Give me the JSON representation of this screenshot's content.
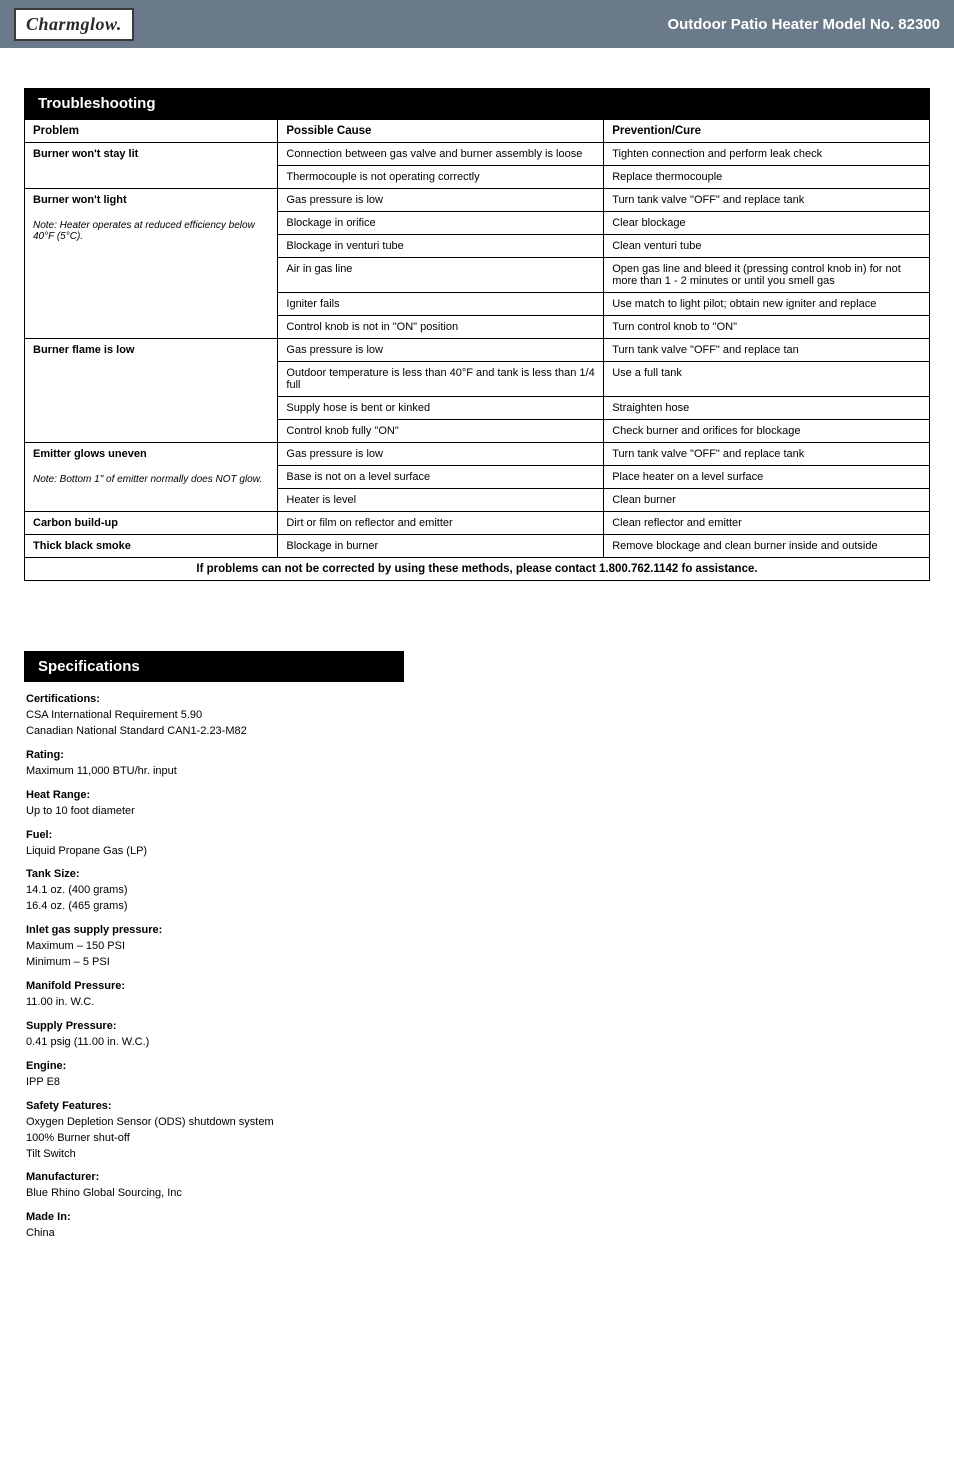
{
  "header": {
    "logo_text": "Charmglow.",
    "right_text": "Outdoor Patio Heater Model No. 82300"
  },
  "troubleshooting": {
    "title": "Troubleshooting",
    "columns": [
      "Problem",
      "Possible Cause",
      "Prevention/Cure"
    ],
    "groups": [
      {
        "problem": "Burner won't stay lit",
        "note": "",
        "rows": [
          {
            "cause": "Connection between gas valve and burner assembly is loose",
            "cure": "Tighten connection and perform leak check"
          },
          {
            "cause": "Thermocouple is not operating correctly",
            "cure": "Replace thermocouple"
          }
        ]
      },
      {
        "problem": "Burner won't light",
        "note": "Note: Heater operates at reduced efficiency below 40°F (5°C).",
        "rows": [
          {
            "cause": "Gas pressure is low",
            "cure": "Turn tank valve \"OFF\" and replace tank"
          },
          {
            "cause": "Blockage in orifice",
            "cure": "Clear blockage"
          },
          {
            "cause": "Blockage in venturi tube",
            "cure": "Clean venturi tube"
          },
          {
            "cause": "Air in gas line",
            "cure": "Open gas line and bleed it (pressing control knob in) for not more than 1 - 2 minutes or until you smell gas"
          },
          {
            "cause": "Igniter fails",
            "cure": "Use match to light pilot; obtain new igniter and replace"
          },
          {
            "cause": "Control knob is not in \"ON\" position",
            "cure": "Turn control knob to \"ON\""
          }
        ]
      },
      {
        "problem": "Burner flame is low",
        "note": "",
        "rows": [
          {
            "cause": "Gas pressure is low",
            "cure": "Turn tank valve \"OFF\" and replace tan"
          },
          {
            "cause": "Outdoor temperature is less than 40°F and tank is less than 1/4 full",
            "cure": "Use a full tank"
          },
          {
            "cause": "Supply hose is bent or kinked",
            "cure": "Straighten hose"
          },
          {
            "cause": "Control knob fully \"ON\"",
            "cure": "Check burner and orifices for blockage"
          }
        ]
      },
      {
        "problem": "Emitter glows uneven",
        "note": "Note: Bottom 1\" of emitter normally does NOT glow.",
        "rows": [
          {
            "cause": "Gas pressure is low",
            "cure": "Turn tank valve \"OFF\" and replace tank"
          },
          {
            "cause": "Base is not on a level surface",
            "cure": "Place heater on a level surface"
          },
          {
            "cause": "Heater is level",
            "cure": "Clean burner"
          }
        ]
      },
      {
        "problem": "Carbon build-up",
        "note": "",
        "rows": [
          {
            "cause": "Dirt or film on reflector and emitter",
            "cure": "Clean reflector and emitter"
          }
        ]
      },
      {
        "problem": "Thick black smoke",
        "note": "",
        "rows": [
          {
            "cause": "Blockage in burner",
            "cure": "Remove blockage and clean burner inside and outside"
          }
        ]
      }
    ],
    "footer": "If problems can not be corrected by using these methods, please contact 1.800.762.1142 fo assistance."
  },
  "specifications": {
    "title": "Specifications",
    "items": [
      {
        "label": "Certifications:",
        "lines": [
          "CSA International Requirement 5.90",
          "Canadian National Standard CAN1-2.23-M82"
        ]
      },
      {
        "label": "Rating:",
        "lines": [
          "Maximum 11,000 BTU/hr. input"
        ]
      },
      {
        "label": "Heat Range:",
        "lines": [
          "Up to 10 foot diameter"
        ]
      },
      {
        "label": "Fuel:",
        "lines": [
          "Liquid Propane Gas (LP)"
        ]
      },
      {
        "label": "Tank Size:",
        "lines": [
          "14.1 oz. (400 grams)",
          "16.4 oz. (465 grams)"
        ]
      },
      {
        "label": "Inlet gas supply pressure:",
        "lines": [
          "Maximum – 150 PSI",
          "Minimum – 5 PSI"
        ]
      },
      {
        "label": "Manifold Pressure:",
        "lines": [
          "11.00 in. W.C."
        ]
      },
      {
        "label": "Supply Pressure:",
        "lines": [
          "0.41 psig (11.00 in. W.C.)"
        ]
      },
      {
        "label": "Engine:",
        "lines": [
          "IPP E8"
        ]
      },
      {
        "label": "Safety Features:",
        "lines": [
          "Oxygen Depletion Sensor (ODS) shutdown system",
          "100% Burner shut-off",
          "Tilt Switch"
        ]
      },
      {
        "label": "Manufacturer:",
        "lines": [
          "Blue Rhino Global Sourcing, Inc"
        ]
      },
      {
        "label": "Made In:",
        "lines": [
          "China"
        ]
      }
    ]
  }
}
